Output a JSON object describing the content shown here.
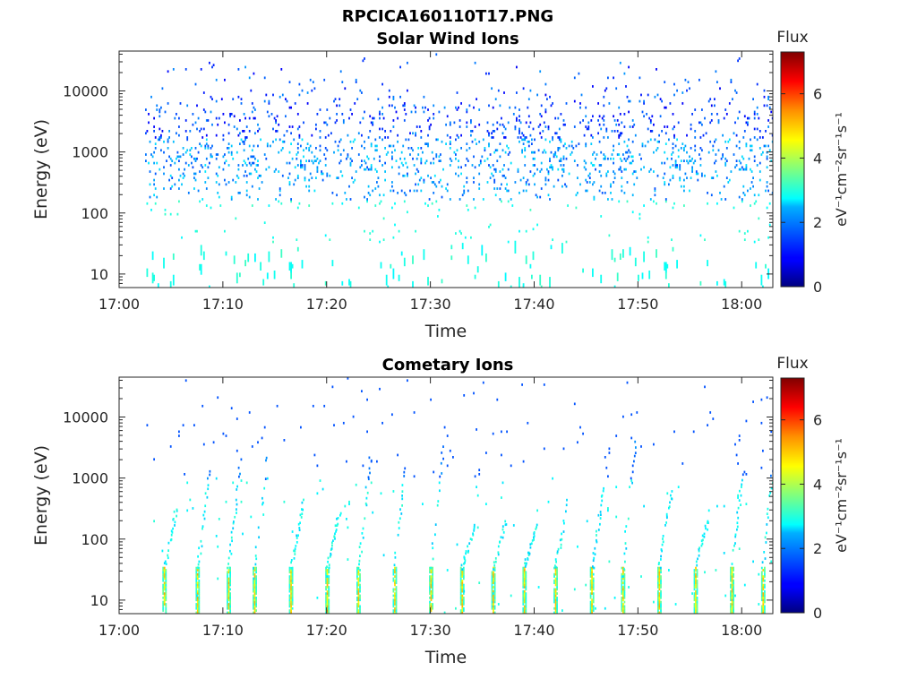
{
  "figure_title": "RPCICA160110T17.PNG",
  "chart_data": [
    {
      "type": "heatmap",
      "title": "Solar Wind Ions",
      "xlabel": "Time",
      "ylabel": "Energy (eV)",
      "x_ticks": [
        "17:00",
        "17:10",
        "17:20",
        "17:30",
        "17:40",
        "17:50",
        "18:00"
      ],
      "y_ticks": [
        "10",
        "100",
        "1000",
        "10000"
      ],
      "y_scale": "log",
      "ylim": [
        6,
        45000
      ],
      "xlim": [
        "17:00",
        "18:03"
      ],
      "colorbar": {
        "label": "Flux",
        "unit_text": "eV⁻¹cm⁻²sr⁻¹s⁻¹",
        "ticks": [
          "0",
          "2",
          "4",
          "6"
        ],
        "range": [
          0,
          7.3
        ],
        "colormap": "jet"
      },
      "pattern": {
        "start_minute": 2.5,
        "dominant_flux": 2,
        "peak_energy_eV": 700,
        "notes": "scattered sparse counts; dense band near 300-2000 eV, sparse tails up to ~25000 eV and down to ~6 eV"
      }
    },
    {
      "type": "heatmap",
      "title": "Cometary Ions",
      "xlabel": "Time",
      "ylabel": "Energy (eV)",
      "x_ticks": [
        "17:00",
        "17:10",
        "17:20",
        "17:30",
        "17:40",
        "17:50",
        "18:00"
      ],
      "y_ticks": [
        "10",
        "100",
        "1000",
        "10000"
      ],
      "y_scale": "log",
      "ylim": [
        6,
        45000
      ],
      "xlim": [
        "17:00",
        "18:03"
      ],
      "colorbar": {
        "label": "Flux",
        "unit_text": "eV⁻¹cm⁻²sr⁻¹s⁻¹",
        "ticks": [
          "0",
          "2",
          "4",
          "6"
        ],
        "range": [
          0,
          7.3
        ],
        "colormap": "jet"
      },
      "pattern": {
        "start_minute": 2.5,
        "burst_minutes": [
          4.3,
          7.5,
          10.5,
          13.0,
          16.5,
          20.0,
          23.0,
          26.5,
          30.0,
          33.0,
          36.0,
          39.0,
          42.0,
          45.5,
          48.5,
          52.0,
          55.5,
          59.0,
          62.0
        ],
        "burst_peak_flux": 4.8,
        "low_energy_eV": [
          6,
          35
        ],
        "notes": "periodic vertical bursts: intense low-energy (6-35 eV) columns with dispersing tails up to ~5000 eV"
      }
    }
  ]
}
